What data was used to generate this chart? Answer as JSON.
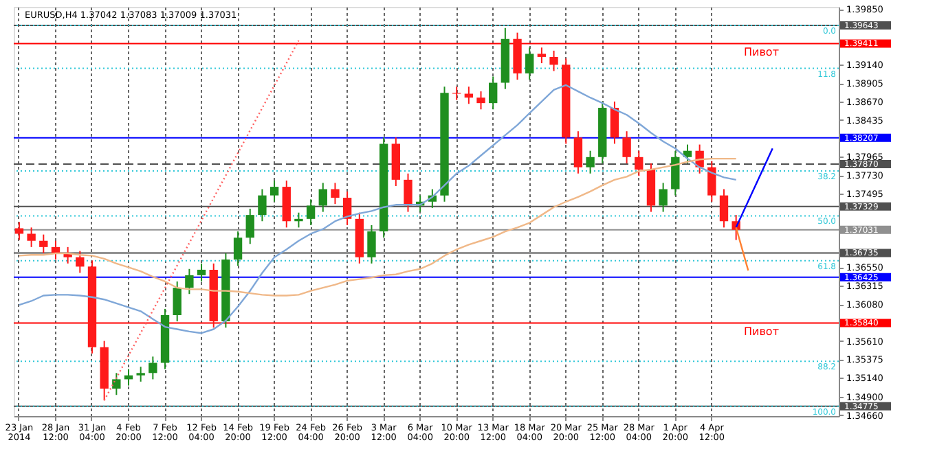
{
  "chart_data": {
    "type": "candlestick",
    "title": "EURUSD,H4  1.37042 1.37083 1.37009 1.37031",
    "categories": [
      "23 Jan 2014",
      null,
      null,
      "28 Jan 12:00",
      null,
      null,
      "31 Jan 04:00",
      null,
      null,
      "4 Feb 20:00",
      null,
      null,
      "7 Feb 12:00",
      null,
      null,
      "12 Feb 04:00",
      null,
      null,
      "14 Feb 20:00",
      null,
      null,
      "19 Feb 12:00",
      null,
      null,
      "24 Feb 04:00",
      null,
      null,
      "26 Feb 20:00",
      null,
      null,
      "3 Mar 12:00",
      null,
      null,
      "6 Mar 04:00",
      null,
      null,
      "10 Mar 20:00",
      null,
      null,
      "13 Mar 12:00",
      null,
      null,
      "18 Mar 04:00",
      null,
      null,
      "20 Mar 20:00",
      null,
      null,
      "25 Mar 12:00",
      null,
      null,
      "28 Mar 04:00",
      null,
      null,
      "1 Apr 20:00",
      null,
      null,
      "4 Apr 12:00",
      null,
      null,
      null,
      null,
      null,
      null,
      null,
      null,
      null,
      null
    ],
    "ohlc": [
      [
        1.3705,
        1.3713,
        1.369,
        1.3698
      ],
      [
        1.3698,
        1.3706,
        1.3681,
        1.3689
      ],
      [
        1.3689,
        1.3697,
        1.3673,
        1.3681
      ],
      [
        1.3681,
        1.3689,
        1.3665,
        1.3673
      ],
      [
        1.3673,
        1.3681,
        1.366,
        1.3668
      ],
      [
        1.3668,
        1.3676,
        1.3648,
        1.3656
      ],
      [
        1.3656,
        1.3664,
        1.3545,
        1.3553
      ],
      [
        1.3553,
        1.3561,
        1.3485,
        1.35
      ],
      [
        1.35,
        1.352,
        1.3492,
        1.3512
      ],
      [
        1.3512,
        1.3525,
        1.3504,
        1.3517
      ],
      [
        1.3517,
        1.3528,
        1.3509,
        1.352
      ],
      [
        1.352,
        1.3541,
        1.3512,
        1.3533
      ],
      [
        1.3533,
        1.3602,
        1.3525,
        1.3594
      ],
      [
        1.3594,
        1.3637,
        1.3586,
        1.3629
      ],
      [
        1.3629,
        1.3653,
        1.3621,
        1.3645
      ],
      [
        1.3645,
        1.366,
        1.3637,
        1.3652
      ],
      [
        1.3652,
        1.366,
        1.3578,
        1.3586
      ],
      [
        1.3586,
        1.3673,
        1.3578,
        1.3665
      ],
      [
        1.3665,
        1.3701,
        1.3657,
        1.3693
      ],
      [
        1.3693,
        1.373,
        1.3685,
        1.3722
      ],
      [
        1.3722,
        1.3755,
        1.3714,
        1.3747
      ],
      [
        1.3747,
        1.3766,
        1.3739,
        1.3758
      ],
      [
        1.3758,
        1.3766,
        1.3706,
        1.3714
      ],
      [
        1.3714,
        1.3725,
        1.3706,
        1.3717
      ],
      [
        1.3717,
        1.3742,
        1.3709,
        1.3734
      ],
      [
        1.3734,
        1.3763,
        1.3726,
        1.3755
      ],
      [
        1.3755,
        1.3763,
        1.3736,
        1.3744
      ],
      [
        1.3744,
        1.3752,
        1.3709,
        1.3717
      ],
      [
        1.3717,
        1.3725,
        1.366,
        1.3668
      ],
      [
        1.3668,
        1.3709,
        1.366,
        1.3701
      ],
      [
        1.3701,
        1.3821,
        1.3693,
        1.3813
      ],
      [
        1.3813,
        1.3821,
        1.3759,
        1.3767
      ],
      [
        1.3767,
        1.3775,
        1.3726,
        1.3734
      ],
      [
        1.3734,
        1.3747,
        1.3726,
        1.3739
      ],
      [
        1.3739,
        1.3755,
        1.3731,
        1.3747
      ],
      [
        1.3747,
        1.3886,
        1.3739,
        1.3878
      ],
      [
        1.3878,
        1.3886,
        1.3869,
        1.3877
      ],
      [
        1.3877,
        1.3886,
        1.3864,
        1.3872
      ],
      [
        1.3872,
        1.388,
        1.3857,
        1.3865
      ],
      [
        1.3865,
        1.3899,
        1.3857,
        1.3891
      ],
      [
        1.3891,
        1.3961,
        1.3883,
        1.3947
      ],
      [
        1.3947,
        1.3955,
        1.3895,
        1.3903
      ],
      [
        1.3903,
        1.3936,
        1.3895,
        1.3928
      ],
      [
        1.3928,
        1.3936,
        1.3916,
        1.3924
      ],
      [
        1.3924,
        1.3932,
        1.3906,
        1.3914
      ],
      [
        1.3914,
        1.3922,
        1.3813,
        1.3821
      ],
      [
        1.3821,
        1.3829,
        1.3775,
        1.3783
      ],
      [
        1.3783,
        1.3804,
        1.3775,
        1.3796
      ],
      [
        1.3796,
        1.3867,
        1.3788,
        1.3859
      ],
      [
        1.3859,
        1.3867,
        1.3813,
        1.3821
      ],
      [
        1.3821,
        1.3829,
        1.3788,
        1.3796
      ],
      [
        1.3796,
        1.3804,
        1.3772,
        1.378
      ],
      [
        1.378,
        1.3788,
        1.3726,
        1.3734
      ],
      [
        1.3734,
        1.3763,
        1.3726,
        1.3755
      ],
      [
        1.3755,
        1.3804,
        1.3747,
        1.3796
      ],
      [
        1.3796,
        1.3812,
        1.3788,
        1.3804
      ],
      [
        1.3804,
        1.3812,
        1.3775,
        1.3783
      ],
      [
        1.3783,
        1.3791,
        1.3739,
        1.3747
      ],
      [
        1.3747,
        1.3755,
        1.3706,
        1.3714
      ],
      [
        1.3714,
        1.3722,
        1.369,
        1.3703
      ],
      null,
      null,
      null,
      null,
      null,
      null,
      null,
      null
    ],
    "ylim": [
      1.3465,
      1.3988
    ],
    "yticks": [
      {
        "value": 1.3985,
        "label": "1.39850"
      },
      {
        "value": 1.3914,
        "label": "1.39140"
      },
      {
        "value": 1.38905,
        "label": "1.38905"
      },
      {
        "value": 1.3867,
        "label": "1.38670"
      },
      {
        "value": 1.38435,
        "label": "1.38435"
      },
      {
        "value": 1.37965,
        "label": "1.37965"
      },
      {
        "value": 1.3773,
        "label": "1.37730"
      },
      {
        "value": 1.37495,
        "label": "1.37495"
      },
      {
        "value": 1.3655,
        "label": "1.36550"
      },
      {
        "value": 1.36315,
        "label": "1.36315"
      },
      {
        "value": 1.3608,
        "label": "1.36080"
      },
      {
        "value": 1.3561,
        "label": "1.35610"
      },
      {
        "value": 1.35375,
        "label": "1.35375"
      },
      {
        "value": 1.3514,
        "label": "1.35140"
      },
      {
        "value": 1.349,
        "label": "1.34900"
      },
      {
        "value": 1.3466,
        "label": "1.34660"
      }
    ],
    "grid": "x",
    "series": [
      {
        "type": "line",
        "color": "#7fa7d8",
        "values": [
          1.3607,
          1.3612,
          1.3619,
          1.362,
          1.362,
          1.3619,
          1.3617,
          1.3614,
          1.3609,
          1.3604,
          1.3599,
          1.3589,
          1.3579,
          1.3576,
          1.3573,
          1.3571,
          1.3576,
          1.3587,
          1.3605,
          1.3625,
          1.3648,
          1.3668,
          1.3678,
          1.3689,
          1.3698,
          1.3704,
          1.3714,
          1.372,
          1.3724,
          1.3727,
          1.3732,
          1.3735,
          1.3735,
          1.3735,
          1.3745,
          1.376,
          1.3775,
          1.3785,
          1.3798,
          1.3811,
          1.3824,
          1.3837,
          1.3852,
          1.3867,
          1.3882,
          1.3888,
          1.388,
          1.3872,
          1.3865,
          1.3857,
          1.385,
          1.3839,
          1.3827,
          1.3816,
          1.3807,
          1.3794,
          1.3783,
          1.3776,
          1.377,
          1.3767,
          null,
          null,
          null,
          null,
          null,
          null,
          null,
          null
        ]
      },
      {
        "type": "line",
        "color": "#f0b888",
        "values": [
          1.367,
          1.3671,
          1.3671,
          1.3673,
          1.3673,
          1.3671,
          1.367,
          1.3666,
          1.366,
          1.3655,
          1.365,
          1.3643,
          1.3637,
          1.3629,
          1.3627,
          1.3627,
          1.3625,
          1.3625,
          1.3624,
          1.3622,
          1.362,
          1.3619,
          1.3619,
          1.362,
          1.3625,
          1.3629,
          1.3633,
          1.3638,
          1.364,
          1.3642,
          1.3645,
          1.3646,
          1.365,
          1.3653,
          1.366,
          1.367,
          1.3678,
          1.3684,
          1.3689,
          1.3694,
          1.3701,
          1.3706,
          1.3712,
          1.3722,
          1.3732,
          1.3739,
          1.3745,
          1.3752,
          1.376,
          1.3767,
          1.3771,
          1.3778,
          1.378,
          1.3783,
          1.3786,
          1.379,
          1.3793,
          1.3794,
          1.3794,
          1.3794,
          null,
          null,
          null,
          null,
          null,
          null,
          null,
          null
        ]
      },
      {
        "type": "line",
        "color": "#ff6060",
        "line_style": "dotted",
        "values": [
          null,
          null,
          null,
          null,
          null,
          null,
          null,
          1.3485,
          null,
          null,
          null,
          null,
          null,
          null,
          null,
          null,
          null,
          null,
          null,
          null,
          null,
          null,
          null,
          1.3945,
          null,
          null,
          null,
          null,
          null,
          null,
          null,
          null,
          null,
          null,
          null,
          null,
          null,
          null,
          null,
          null,
          null,
          null,
          null,
          null,
          null,
          null,
          null,
          null,
          null,
          null,
          null,
          null,
          null,
          null,
          null,
          null,
          null,
          null,
          null,
          null,
          null,
          null,
          null,
          null,
          null,
          null,
          null,
          null
        ]
      },
      {
        "type": "line",
        "color": "#0000ff",
        "values": [
          null,
          null,
          null,
          null,
          null,
          null,
          null,
          null,
          null,
          null,
          null,
          null,
          null,
          null,
          null,
          null,
          null,
          null,
          null,
          null,
          null,
          null,
          null,
          null,
          null,
          null,
          null,
          null,
          null,
          null,
          null,
          null,
          null,
          null,
          null,
          null,
          null,
          null,
          null,
          null,
          null,
          null,
          null,
          null,
          null,
          null,
          null,
          null,
          null,
          null,
          null,
          null,
          null,
          null,
          null,
          null,
          null,
          null,
          null,
          1.3706,
          null,
          null,
          1.3807,
          null,
          null,
          null,
          null,
          null
        ]
      },
      {
        "type": "line",
        "color": "#ff8030",
        "values": [
          null,
          null,
          null,
          null,
          null,
          null,
          null,
          null,
          null,
          null,
          null,
          null,
          null,
          null,
          null,
          null,
          null,
          null,
          null,
          null,
          null,
          null,
          null,
          null,
          null,
          null,
          null,
          null,
          null,
          null,
          null,
          null,
          null,
          null,
          null,
          null,
          null,
          null,
          null,
          null,
          null,
          null,
          null,
          null,
          null,
          null,
          null,
          null,
          null,
          null,
          null,
          null,
          null,
          null,
          null,
          null,
          null,
          null,
          null,
          1.3706,
          1.3651,
          null,
          null,
          null,
          null,
          null,
          null,
          null
        ]
      }
    ],
    "ref_lines": [
      {
        "axis": "y",
        "value": 1.39643,
        "label": "1.39643",
        "color": "#505050"
      },
      {
        "axis": "y",
        "value": 1.39411,
        "label": "1.39411",
        "color": "#ff0000"
      },
      {
        "axis": "y",
        "value": 1.38207,
        "label": "1.38207",
        "color": "#0000ff"
      },
      {
        "axis": "y",
        "value": 1.3787,
        "label": "1.37870",
        "color": "#505050",
        "line_style": "dashed"
      },
      {
        "axis": "y",
        "value": 1.37329,
        "label": "1.37329",
        "color": "#505050"
      },
      {
        "axis": "y",
        "value": 1.37031,
        "label": "1.37031",
        "color": "#909090"
      },
      {
        "axis": "y",
        "value": 1.36735,
        "label": "1.36735",
        "color": "#505050"
      },
      {
        "axis": "y",
        "value": 1.36425,
        "label": "1.36425",
        "color": "#0000ff"
      },
      {
        "axis": "y",
        "value": 1.3584,
        "label": "1.35840",
        "color": "#ff0000"
      },
      {
        "axis": "y",
        "value": 1.34775,
        "label": "1.34775",
        "color": "#505050"
      },
      {
        "axis": "y",
        "value": 1.39643,
        "color": "#30c8d8",
        "line_style": "dotted"
      },
      {
        "axis": "y",
        "value": 1.39094,
        "color": "#30c8d8",
        "line_style": "dotted"
      },
      {
        "axis": "y",
        "value": 1.37783,
        "color": "#30c8d8",
        "line_style": "dotted"
      },
      {
        "axis": "y",
        "value": 1.37209,
        "color": "#30c8d8",
        "line_style": "dotted"
      },
      {
        "axis": "y",
        "value": 1.36635,
        "color": "#30c8d8",
        "line_style": "dotted"
      },
      {
        "axis": "y",
        "value": 1.35349,
        "color": "#30c8d8",
        "line_style": "dotted"
      },
      {
        "axis": "y",
        "value": 1.34775,
        "color": "#30c8d8",
        "line_style": "dotted"
      }
    ],
    "annotations": [
      {
        "text": "Пивот",
        "y": 1.39411
      },
      {
        "text": "Пивот",
        "y": 1.3584
      },
      {
        "text": "0.0",
        "y": 1.39643
      },
      {
        "text": "11.8",
        "y": 1.39094
      },
      {
        "text": "38.2",
        "y": 1.37783
      },
      {
        "text": "50.0",
        "y": 1.37209
      },
      {
        "text": "61.8",
        "y": 1.36635
      },
      {
        "text": "88.2",
        "y": 1.35349
      },
      {
        "text": "100.0",
        "y": 1.34775
      }
    ]
  }
}
